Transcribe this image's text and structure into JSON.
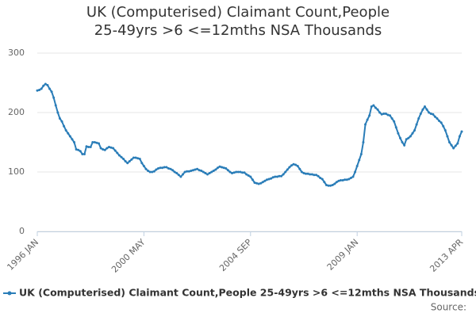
{
  "chart_data": {
    "type": "line",
    "title": "UK (Computerised) Claimant Count,People 25-49yrs >6 <=12mths NSA Thousands",
    "source": "Source:",
    "categories": [
      "1996 JAN",
      null,
      null,
      null,
      null,
      null,
      null,
      null,
      null,
      null,
      null,
      null,
      null,
      null,
      null,
      null,
      null,
      null,
      null,
      null,
      null,
      null,
      null,
      null,
      null,
      null,
      null,
      null,
      null,
      null,
      null,
      null,
      null,
      null,
      null,
      null,
      null,
      null,
      null,
      null,
      null,
      null,
      null,
      null,
      null,
      null,
      null,
      null,
      null,
      null,
      null,
      null,
      "2000 MAY",
      null,
      null,
      null,
      null,
      null,
      null,
      null,
      null,
      null,
      null,
      null,
      null,
      null,
      null,
      null,
      null,
      null,
      null,
      null,
      null,
      null,
      null,
      null,
      null,
      null,
      null,
      null,
      null,
      null,
      null,
      null,
      null,
      null,
      null,
      null,
      null,
      null,
      null,
      null,
      null,
      null,
      null,
      null,
      null,
      null,
      null,
      null,
      null,
      null,
      null,
      null,
      "2004 SEP",
      null,
      null,
      null,
      null,
      null,
      null,
      null,
      null,
      null,
      null,
      null,
      null,
      null,
      null,
      null,
      null,
      null,
      null,
      null,
      null,
      null,
      null,
      null,
      null,
      null,
      null,
      null,
      null,
      null,
      null,
      null,
      null,
      null,
      null,
      null,
      null,
      null,
      null,
      null,
      null,
      null,
      null,
      null,
      null,
      null,
      null,
      null,
      null,
      null,
      null,
      null,
      "2009 JAN",
      null,
      null,
      null,
      null,
      null,
      null,
      null,
      null,
      null,
      null,
      null,
      null,
      null,
      null,
      null,
      null,
      null,
      null,
      null,
      null,
      null,
      null,
      null,
      null,
      null,
      null,
      null,
      null,
      null,
      null,
      null,
      null,
      null,
      null,
      null,
      null,
      null,
      null,
      null,
      null,
      null,
      null,
      null,
      null,
      null,
      null,
      null,
      null,
      null,
      null,
      "2013 APR"
    ],
    "series": [
      {
        "name": "UK (Computerised) Claimant Count,People 25-49yrs >6 <=12mths NSA Thousands",
        "color": "#2a7db8",
        "values": [
          237,
          238,
          240,
          245,
          248,
          246,
          240,
          235,
          225,
          212,
          200,
          190,
          185,
          177,
          170,
          165,
          160,
          155,
          150,
          138,
          137,
          135,
          130,
          130,
          143,
          142,
          142,
          150,
          150,
          149,
          148,
          140,
          138,
          137,
          140,
          142,
          141,
          140,
          136,
          132,
          128,
          125,
          122,
          118,
          115,
          118,
          121,
          124,
          124,
          123,
          122,
          115,
          110,
          105,
          102,
          100,
          100,
          101,
          104,
          106,
          107,
          107,
          108,
          108,
          106,
          105,
          103,
          100,
          98,
          95,
          92,
          96,
          100,
          101,
          101,
          102,
          103,
          104,
          105,
          103,
          102,
          100,
          98,
          96,
          98,
          100,
          102,
          104,
          107,
          109,
          108,
          107,
          106,
          103,
          100,
          98,
          99,
          100,
          100,
          100,
          99,
          99,
          96,
          94,
          92,
          87,
          82,
          81,
          80,
          81,
          83,
          85,
          87,
          88,
          89,
          91,
          92,
          92,
          93,
          93,
          96,
          100,
          104,
          108,
          111,
          113,
          112,
          110,
          105,
          100,
          98,
          97,
          97,
          96,
          96,
          95,
          95,
          93,
          90,
          88,
          83,
          78,
          77,
          77,
          78,
          80,
          83,
          85,
          86,
          86,
          87,
          87,
          88,
          90,
          92,
          100,
          110,
          120,
          130,
          150,
          180,
          188,
          195,
          210,
          212,
          208,
          205,
          200,
          197,
          198,
          198,
          196,
          195,
          190,
          185,
          175,
          165,
          157,
          150,
          145,
          155,
          157,
          160,
          165,
          170,
          180,
          190,
          198,
          205,
          210,
          205,
          200,
          198,
          197,
          193,
          190,
          186,
          183,
          177,
          170,
          160,
          150,
          145,
          140,
          144,
          148,
          160,
          168
        ]
      }
    ],
    "ylim": [
      0,
      300
    ],
    "yticks": [
      0,
      100,
      200,
      300
    ],
    "grid": true
  }
}
